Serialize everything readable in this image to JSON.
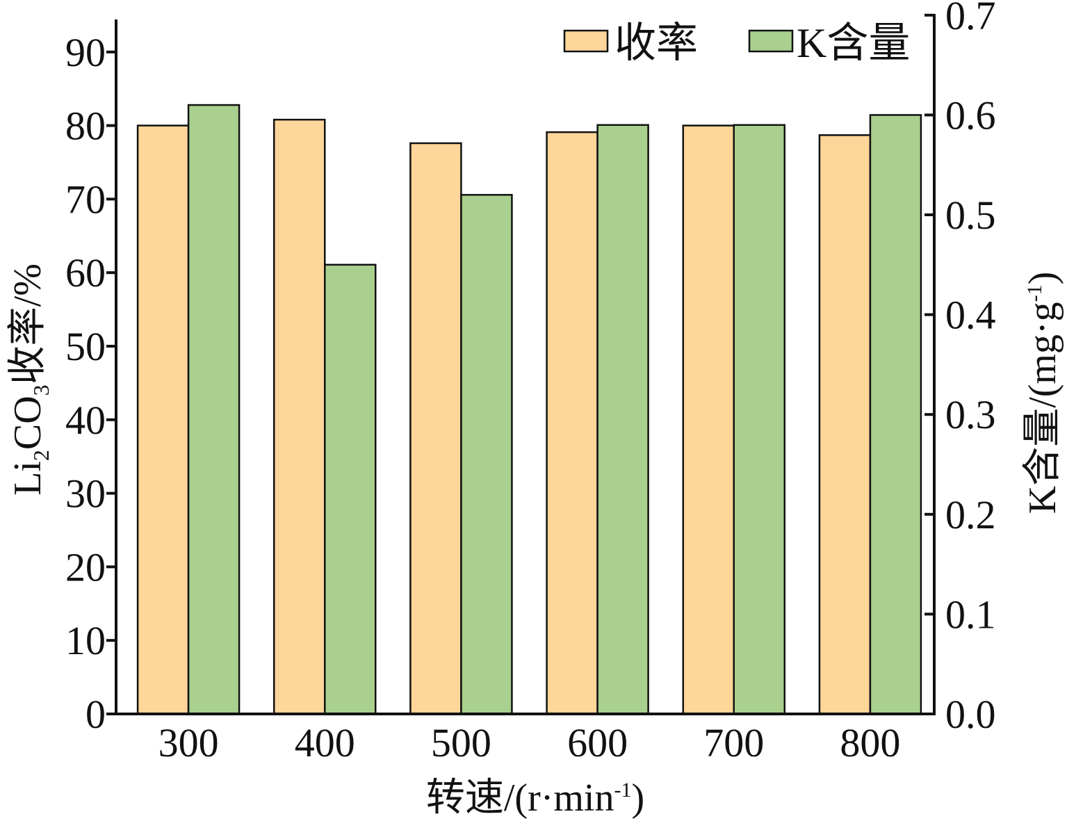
{
  "chart_data": {
    "type": "bar",
    "categories": [
      "300",
      "400",
      "500",
      "600",
      "700",
      "800"
    ],
    "series": [
      {
        "name": "收率",
        "axis": "left",
        "color": "#FFD699",
        "values": [
          80.0,
          80.8,
          77.6,
          79.1,
          80.0,
          78.7
        ]
      },
      {
        "name": "K含量",
        "axis": "right",
        "color": "#A9D08E",
        "values": [
          0.61,
          0.45,
          0.52,
          0.59,
          0.59,
          0.6
        ]
      }
    ],
    "xlabel": {
      "main": "转速/(r·min",
      "sup": "-1",
      "tail": ")"
    },
    "ylabel_left": {
      "pre": "Li",
      "sub1": "2",
      "mid": "CO",
      "sub2": "3",
      "post": "收率/%"
    },
    "ylabel_right": {
      "main": "K含量/(mg·g",
      "sup": "-1",
      "tail": ")"
    },
    "ylim_left": [
      0,
      94
    ],
    "yticks_left": [
      "0",
      "10",
      "20",
      "30",
      "40",
      "50",
      "60",
      "70",
      "80",
      "90"
    ],
    "ylim_right": [
      0,
      0.7
    ],
    "yticks_right": [
      "0.0",
      "0.1",
      "0.2",
      "0.3",
      "0.4",
      "0.5",
      "0.6",
      "0.7"
    ],
    "legend": "top-right",
    "grid": false
  }
}
